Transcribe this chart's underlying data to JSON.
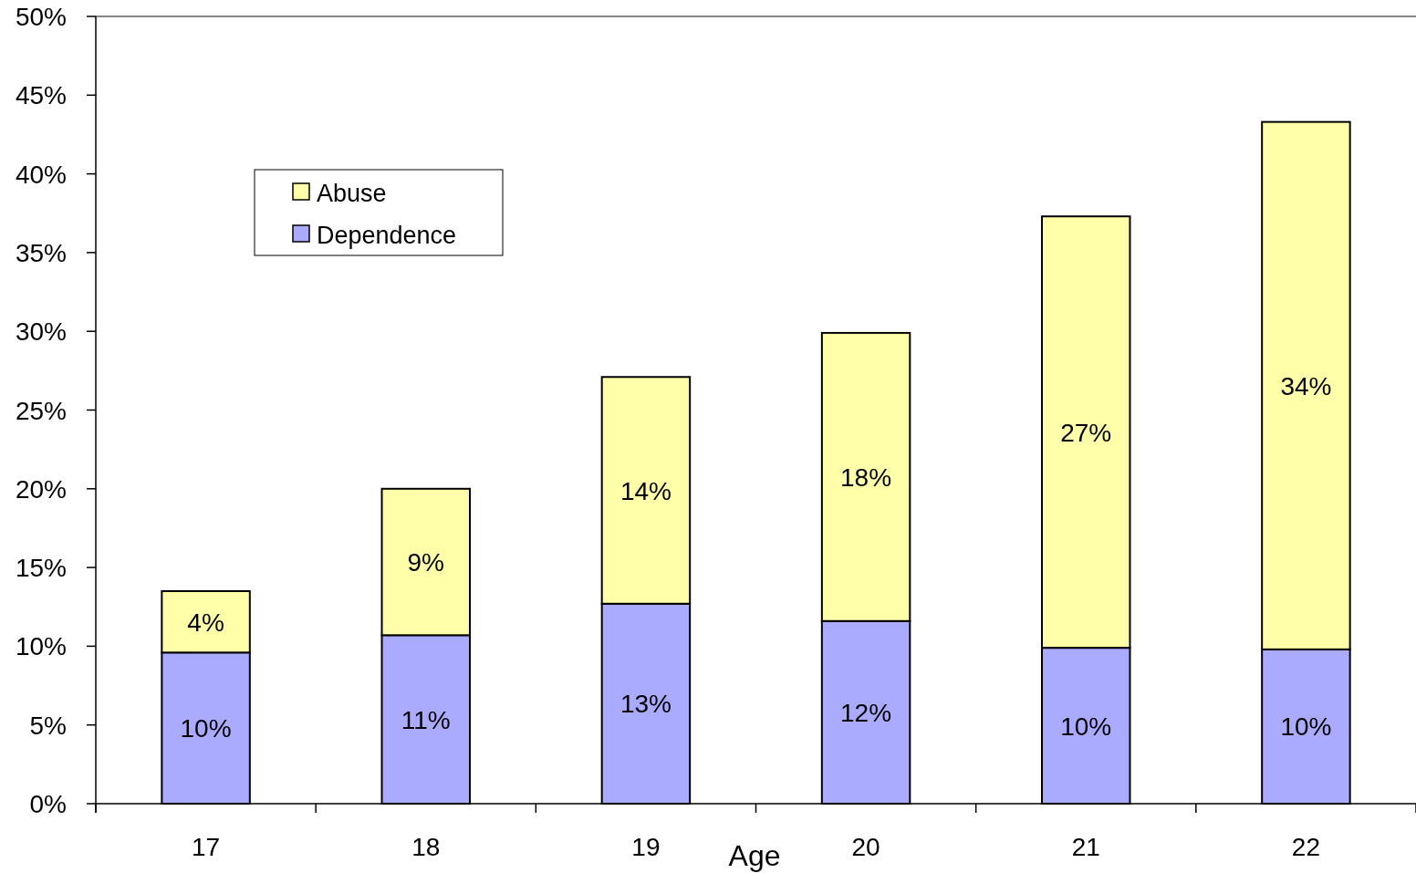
{
  "chart_data": {
    "type": "bar",
    "stacked": true,
    "xlabel": "Age",
    "categories": [
      "17",
      "18",
      "19",
      "20",
      "21",
      "22"
    ],
    "series": [
      {
        "name": "Dependence",
        "color": "#aaaaff",
        "values": [
          9.6,
          10.7,
          12.7,
          11.6,
          9.9,
          9.8
        ],
        "value_labels": [
          "10%",
          "11%",
          "13%",
          "12%",
          "10%",
          "10%"
        ]
      },
      {
        "name": "Abuse",
        "color": "#ffffaa",
        "values": [
          3.9,
          9.3,
          14.4,
          18.3,
          27.4,
          33.5
        ],
        "value_labels": [
          "4%",
          "9%",
          "14%",
          "18%",
          "27%",
          "34%"
        ]
      }
    ],
    "ylim": [
      0,
      50
    ],
    "yticks": [
      {
        "value": 0,
        "label": "0%"
      },
      {
        "value": 5,
        "label": "5%"
      },
      {
        "value": 10,
        "label": "10%"
      },
      {
        "value": 15,
        "label": "15%"
      },
      {
        "value": 20,
        "label": "20%"
      },
      {
        "value": 25,
        "label": "25%"
      },
      {
        "value": 30,
        "label": "30%"
      },
      {
        "value": 35,
        "label": "35%"
      },
      {
        "value": 40,
        "label": "40%"
      },
      {
        "value": 45,
        "label": "45%"
      },
      {
        "value": 50,
        "label": "50%"
      }
    ],
    "legend": "top left",
    "grid": false
  }
}
